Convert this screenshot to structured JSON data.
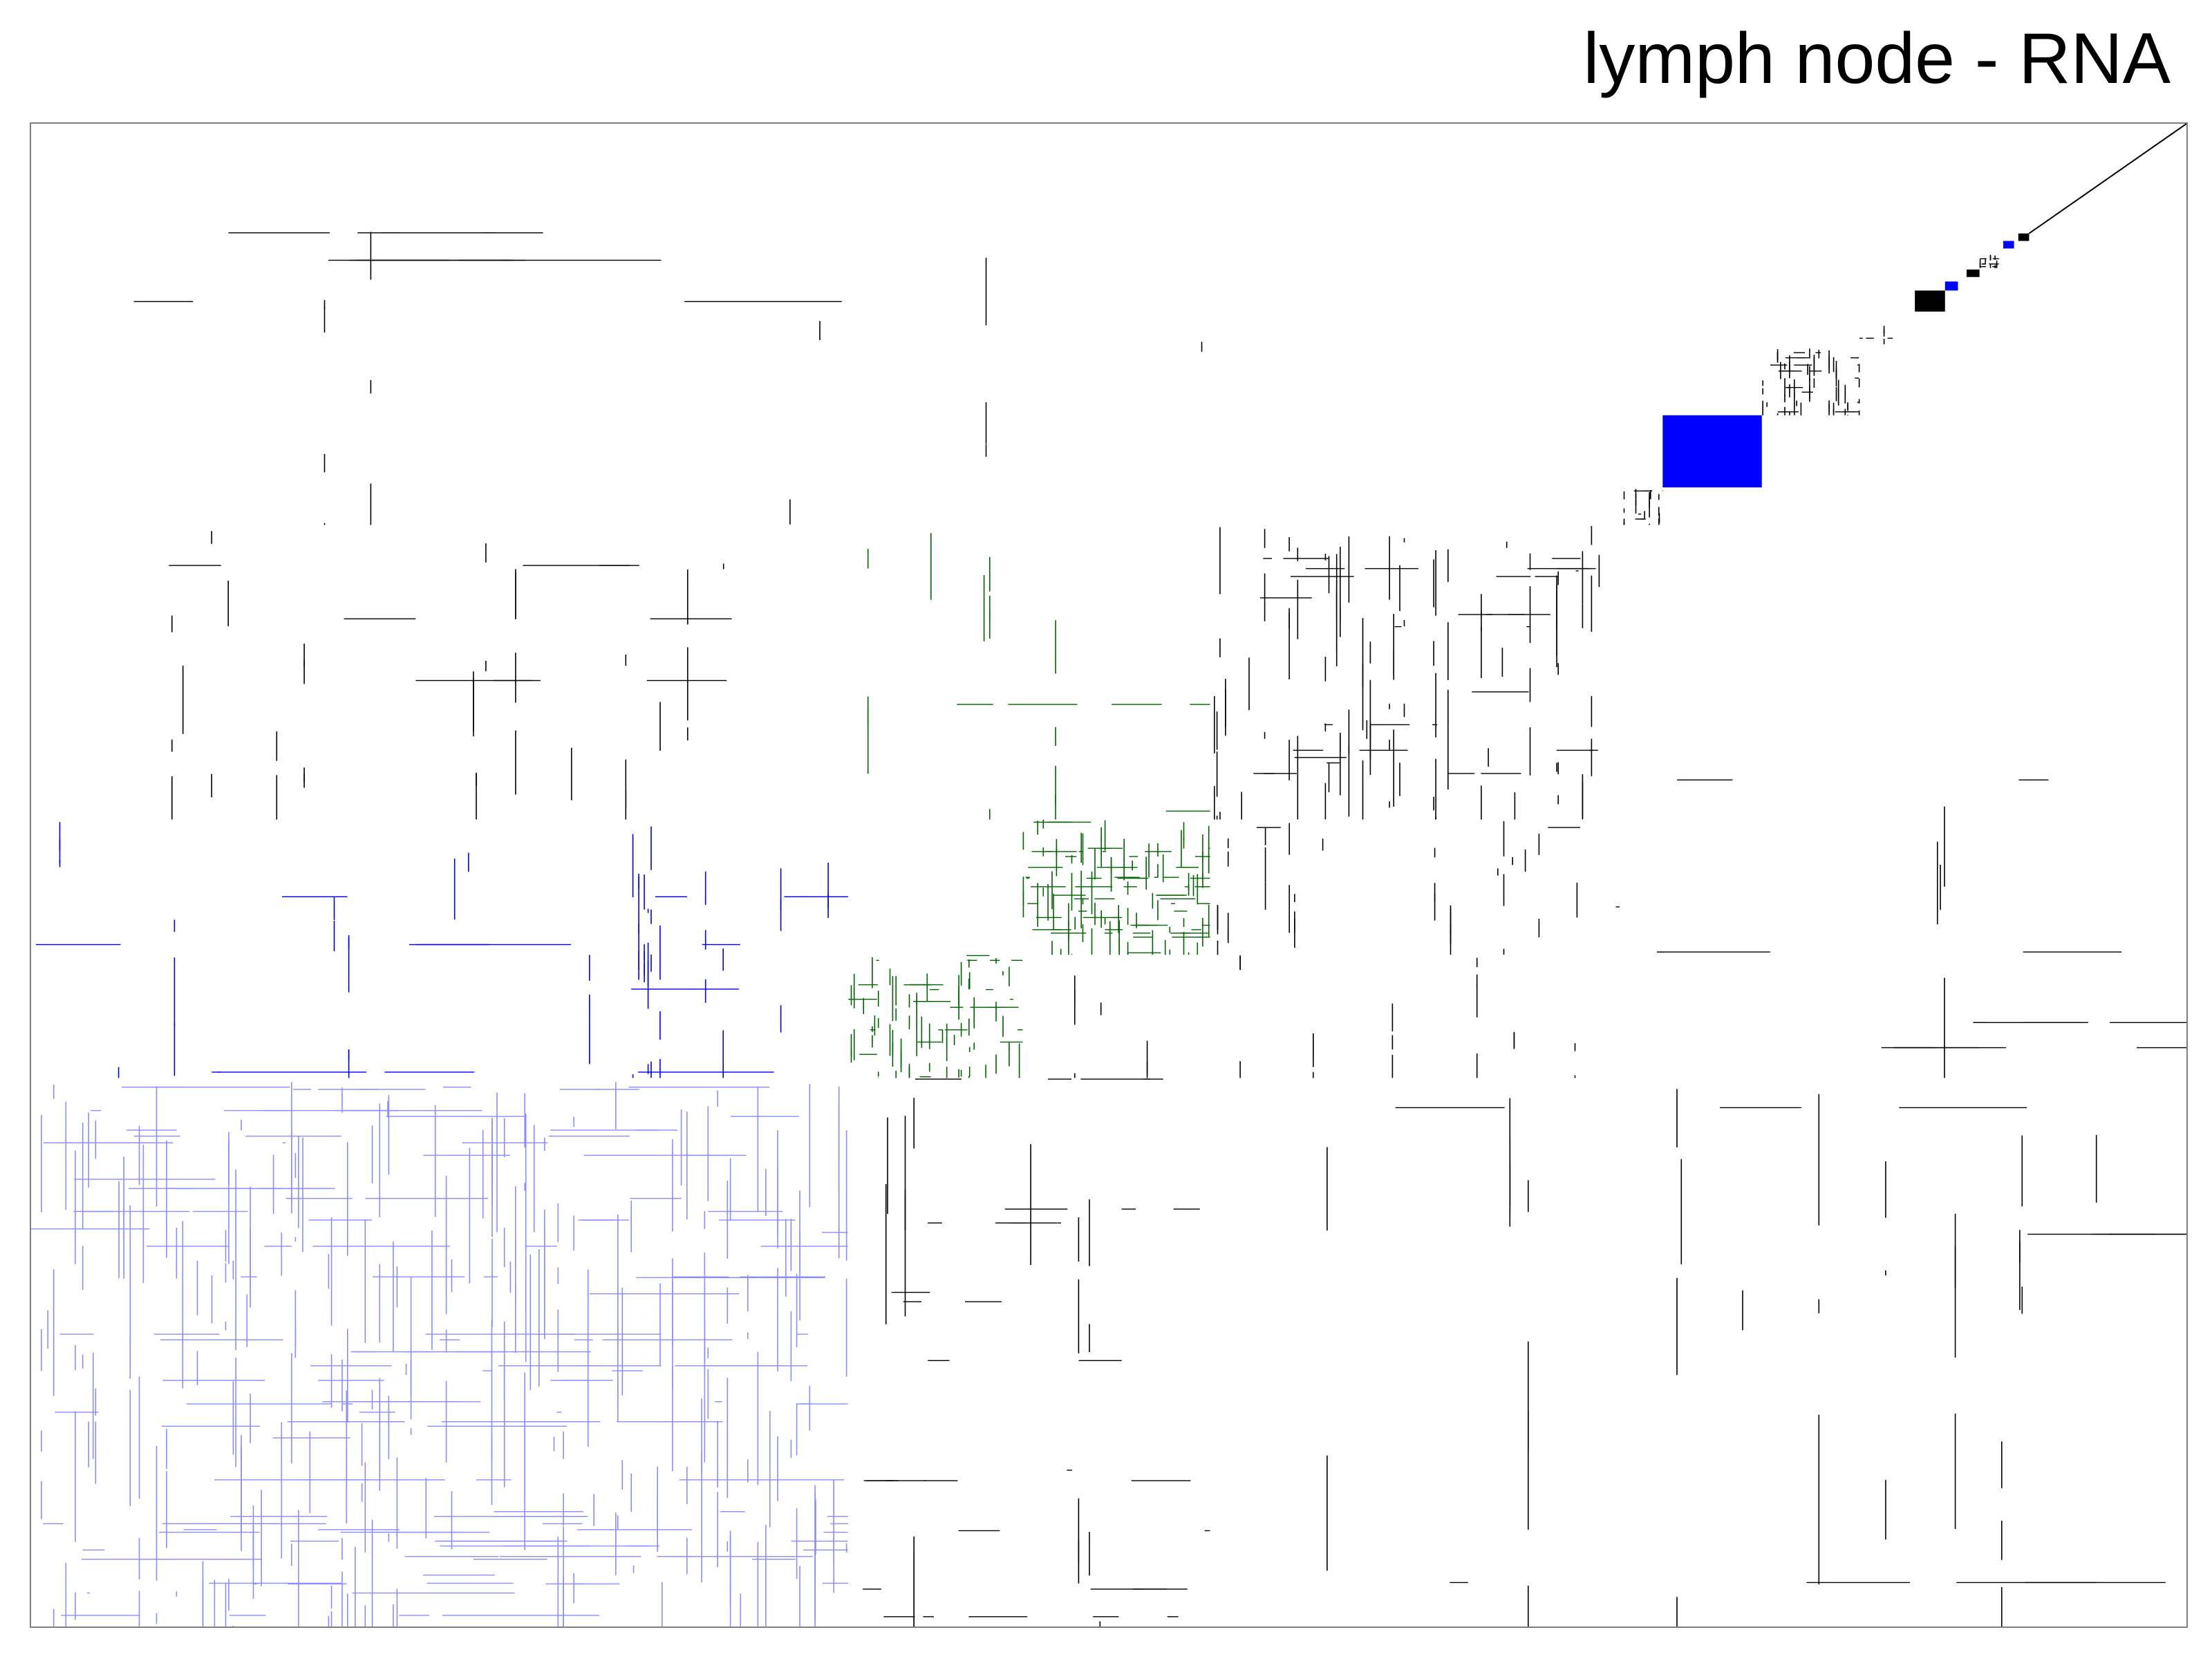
{
  "chart_data": {
    "type": "heatmap",
    "title": "lymph node - RNA",
    "axes": {
      "x_ticks": false,
      "y_ticks": false,
      "grid": false
    },
    "legend": "none",
    "colors": {
      "black": "#000000",
      "blue": "#0000ff",
      "green": "#006400",
      "light_blue": "#8c8cff",
      "background": "#ffffff",
      "frame": "#7f7f7f"
    },
    "blocks": [
      {
        "name": "cluster-a",
        "x": [
          0.0,
          0.379
        ],
        "y": [
          0.0,
          0.365
        ],
        "color": "light_blue",
        "density": 0.34
      },
      {
        "name": "cluster-b",
        "x": [
          0.379,
          0.46
        ],
        "y": [
          0.365,
          0.447
        ],
        "color": "green",
        "density": 0.45
      },
      {
        "name": "cluster-c",
        "x": [
          0.46,
          0.547
        ],
        "y": [
          0.447,
          0.537
        ],
        "color": "green",
        "density": 0.6
      },
      {
        "name": "cluster-d",
        "x": [
          0.547,
          0.737
        ],
        "y": [
          0.537,
          0.733
        ],
        "color": "black",
        "density": 0.24
      },
      {
        "name": "cluster-e",
        "x": [
          0.737,
          0.757
        ],
        "y": [
          0.733,
          0.758
        ],
        "color": "black",
        "density": 0.3
      },
      {
        "name": "cluster-f",
        "x": [
          0.757,
          0.803
        ],
        "y": [
          0.758,
          0.806
        ],
        "color": "blue",
        "density": 1.0
      },
      {
        "name": "cluster-g",
        "x": [
          0.803,
          0.848
        ],
        "y": [
          0.806,
          0.851
        ],
        "color": "black",
        "density": 0.55
      },
      {
        "name": "cluster-h",
        "x": [
          0.848,
          0.866
        ],
        "y": [
          0.851,
          0.868
        ],
        "color": "black",
        "density": 0.14
      },
      {
        "name": "cluster-i",
        "x": [
          0.874,
          0.888
        ],
        "y": [
          0.875,
          0.889
        ],
        "color": "black",
        "density": 1.0
      },
      {
        "name": "cluster-j",
        "x": [
          0.888,
          0.894
        ],
        "y": [
          0.889,
          0.895
        ],
        "color": "blue",
        "density": 1.0
      },
      {
        "name": "cluster-k",
        "x": [
          0.898,
          0.904
        ],
        "y": [
          0.898,
          0.903
        ],
        "color": "black",
        "density": 1.0
      },
      {
        "name": "cluster-l",
        "x": [
          0.904,
          0.913
        ],
        "y": [
          0.904,
          0.913
        ],
        "color": "black",
        "density": 0.8
      },
      {
        "name": "cluster-m",
        "x": [
          0.915,
          0.92
        ],
        "y": [
          0.917,
          0.922
        ],
        "color": "blue",
        "density": 1.0
      },
      {
        "name": "cluster-n",
        "x": [
          0.922,
          0.927
        ],
        "y": [
          0.922,
          0.927
        ],
        "color": "black",
        "density": 1.0
      }
    ],
    "off_diagonal": [
      {
        "x": [
          0.379,
          0.547
        ],
        "y": [
          0.0,
          0.365
        ],
        "color": "black",
        "density": 0.05
      },
      {
        "x": [
          0.547,
          1.0
        ],
        "y": [
          0.0,
          0.365
        ],
        "color": "black",
        "density": 0.03
      },
      {
        "x": [
          0.0,
          0.379
        ],
        "y": [
          0.365,
          0.537
        ],
        "color": "blue",
        "density": 0.06
      },
      {
        "x": [
          0.46,
          0.737
        ],
        "y": [
          0.365,
          0.447
        ],
        "color": "black",
        "density": 0.04
      },
      {
        "x": [
          0.547,
          0.737
        ],
        "y": [
          0.447,
          0.537
        ],
        "color": "black",
        "density": 0.08
      },
      {
        "x": [
          0.0,
          0.379
        ],
        "y": [
          0.537,
          0.733
        ],
        "color": "black",
        "density": 0.06
      },
      {
        "x": [
          0.379,
          0.547
        ],
        "y": [
          0.537,
          0.733
        ],
        "color": "green",
        "density": 0.04
      },
      {
        "x": [
          0.0,
          0.547
        ],
        "y": [
          0.733,
          0.93
        ],
        "color": "black",
        "density": 0.02
      },
      {
        "x": [
          0.737,
          1.0
        ],
        "y": [
          0.365,
          0.733
        ],
        "color": "black",
        "density": 0.02
      }
    ],
    "diagonal": {
      "from": [
        0.927,
        0.927
      ],
      "to": [
        1.0,
        1.0
      ],
      "color": "black"
    }
  }
}
